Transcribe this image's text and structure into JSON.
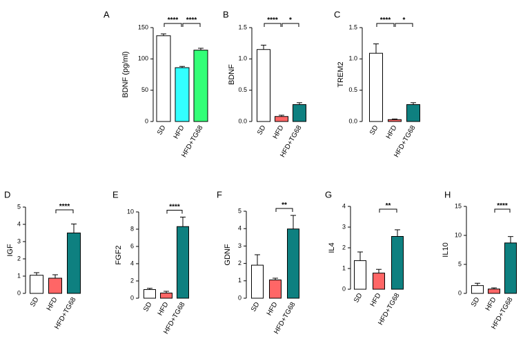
{
  "chart_data": [
    {
      "panel": "A",
      "type": "bar",
      "categories": [
        "SD",
        "HFD",
        "HFD+TG68"
      ],
      "values": [
        137,
        86,
        114
      ],
      "errors": [
        3,
        2,
        3
      ],
      "colors": [
        "#ffffff",
        "#33ffff",
        "#33ff77"
      ],
      "ylabel": "BDNF (pg/ml)",
      "ylim": [
        0,
        150
      ],
      "yticks": [
        "0",
        "50",
        "100",
        "150"
      ],
      "significance": [
        {
          "from": 0,
          "to": 1,
          "label": "****"
        },
        {
          "from": 1,
          "to": 2,
          "label": "****"
        }
      ]
    },
    {
      "panel": "B",
      "type": "bar",
      "categories": [
        "SD",
        "HFD",
        "HFD+TG68"
      ],
      "values": [
        1.15,
        0.08,
        0.27
      ],
      "errors": [
        0.07,
        0.02,
        0.03
      ],
      "colors": [
        "#ffffff",
        "#ff6666",
        "#0e8080"
      ],
      "ylabel": "BDNF",
      "ylim": [
        0,
        1.5
      ],
      "yticks": [
        "0.0",
        "0.5",
        "1.0",
        "1.5"
      ],
      "significance": [
        {
          "from": 0,
          "to": 1,
          "label": "****"
        },
        {
          "from": 1,
          "to": 2,
          "label": "*"
        }
      ]
    },
    {
      "panel": "C",
      "type": "bar",
      "categories": [
        "SD",
        "HFD",
        "HFD+TG68"
      ],
      "values": [
        1.09,
        0.03,
        0.27
      ],
      "errors": [
        0.15,
        0.01,
        0.03
      ],
      "colors": [
        "#ffffff",
        "#ff6666",
        "#0e8080"
      ],
      "ylabel": "TREM2",
      "ylim": [
        0,
        1.5
      ],
      "yticks": [
        "0.0",
        "0.5",
        "1.0",
        "1.5"
      ],
      "significance": [
        {
          "from": 0,
          "to": 1,
          "label": "****"
        },
        {
          "from": 1,
          "to": 2,
          "label": "*"
        }
      ]
    },
    {
      "panel": "D",
      "type": "bar",
      "categories": [
        "SD",
        "HFD",
        "HFD+TG68"
      ],
      "values": [
        1.05,
        0.88,
        3.5
      ],
      "errors": [
        0.15,
        0.2,
        0.52
      ],
      "colors": [
        "#ffffff",
        "#ff6666",
        "#0e8080"
      ],
      "ylabel": "IGF",
      "ylim": [
        0,
        5
      ],
      "yticks": [
        "0",
        "1",
        "2",
        "3",
        "4",
        "5"
      ],
      "significance": [
        {
          "from": 1,
          "to": 2,
          "label": "****"
        }
      ]
    },
    {
      "panel": "E",
      "type": "bar",
      "categories": [
        "SD",
        "HFD",
        "HFD+TG68"
      ],
      "values": [
        1.0,
        0.6,
        8.3
      ],
      "errors": [
        0.15,
        0.2,
        1.1
      ],
      "colors": [
        "#ffffff",
        "#ff6666",
        "#0e8080"
      ],
      "ylabel": "FGF2",
      "ylim": [
        0,
        10
      ],
      "yticks": [
        "0",
        "2",
        "4",
        "6",
        "8",
        "10"
      ],
      "significance": [
        {
          "from": 1,
          "to": 2,
          "label": "****"
        }
      ]
    },
    {
      "panel": "F",
      "type": "bar",
      "categories": [
        "SD",
        "HFD",
        "HFD+TG68"
      ],
      "values": [
        1.9,
        1.05,
        3.98
      ],
      "errors": [
        0.6,
        0.1,
        0.78
      ],
      "colors": [
        "#ffffff",
        "#ff6666",
        "#0e8080"
      ],
      "ylabel": "GDNF",
      "ylim": [
        0,
        5
      ],
      "yticks": [
        "0",
        "1",
        "2",
        "3",
        "4",
        "5"
      ],
      "significance": [
        {
          "from": 1,
          "to": 2,
          "label": "**"
        }
      ]
    },
    {
      "panel": "G",
      "type": "bar",
      "categories": [
        "SD",
        "HFD",
        "HFD+TG68"
      ],
      "values": [
        1.38,
        0.78,
        2.55
      ],
      "errors": [
        0.42,
        0.18,
        0.32
      ],
      "colors": [
        "#ffffff",
        "#ff6666",
        "#0e8080"
      ],
      "ylabel": "IL4",
      "ylim": [
        0,
        4
      ],
      "yticks": [
        "0",
        "1",
        "2",
        "3",
        "4"
      ],
      "significance": [
        {
          "from": 1,
          "to": 2,
          "label": "**"
        }
      ]
    },
    {
      "panel": "H",
      "type": "bar",
      "categories": [
        "SD",
        "HFD",
        "HFD+TG68"
      ],
      "values": [
        1.35,
        0.75,
        8.7
      ],
      "errors": [
        0.4,
        0.2,
        1.1
      ],
      "colors": [
        "#ffffff",
        "#ff6666",
        "#0e8080"
      ],
      "ylabel": "IL10",
      "ylim": [
        0,
        15
      ],
      "yticks": [
        "0",
        "5",
        "10",
        "15"
      ],
      "significance": [
        {
          "from": 1,
          "to": 2,
          "label": "****"
        }
      ]
    }
  ]
}
